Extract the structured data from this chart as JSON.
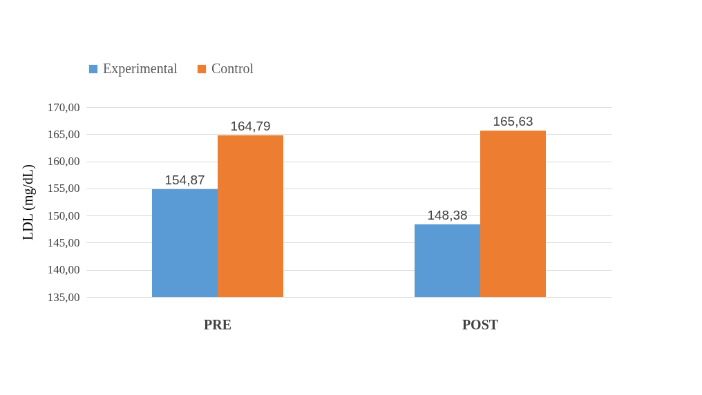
{
  "chart_data": {
    "type": "bar",
    "ylabel": "LDL (mg/dL)",
    "categories": [
      "PRE",
      "POST"
    ],
    "series": [
      {
        "name": "Experimental",
        "color": "#5b9bd5",
        "values": [
          154.87,
          148.38
        ],
        "value_labels": [
          "154,87",
          "148,38"
        ]
      },
      {
        "name": "Control",
        "color": "#ed7d31",
        "values": [
          164.79,
          165.63
        ],
        "value_labels": [
          "164,79",
          "165,63"
        ]
      }
    ],
    "ylim": [
      135,
      170
    ],
    "yticks": [
      {
        "value": 135,
        "label": "135,00"
      },
      {
        "value": 140,
        "label": "140,00"
      },
      {
        "value": 145,
        "label": "145,00"
      },
      {
        "value": 150,
        "label": "150,00"
      },
      {
        "value": 155,
        "label": "155,00"
      },
      {
        "value": 160,
        "label": "160,00"
      },
      {
        "value": 165,
        "label": "165,00"
      },
      {
        "value": 170,
        "label": "170,00"
      }
    ],
    "grid": "y",
    "legend": "top"
  }
}
